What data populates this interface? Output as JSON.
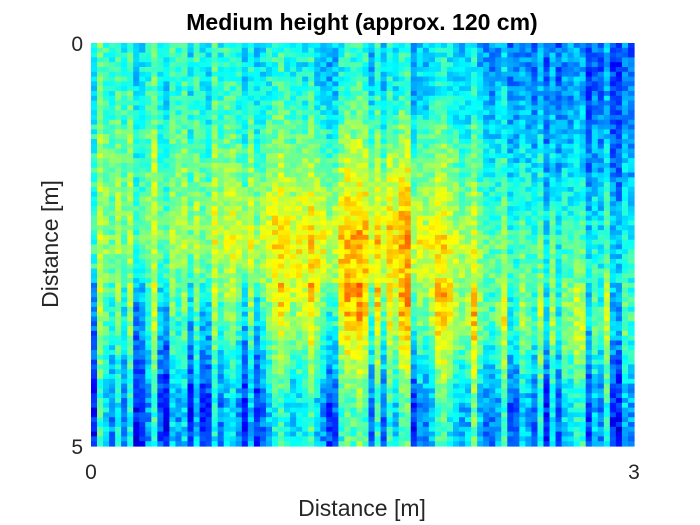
{
  "chart_data": {
    "type": "heatmap",
    "title": "Medium height (approx. 120 cm)",
    "xlabel": "Distance [m]",
    "ylabel": "Distance [m]",
    "xlim": [
      0,
      3
    ],
    "ylim": [
      0,
      5
    ],
    "y_axis_direction": "reversed",
    "x_ticks": [
      {
        "value": 0,
        "label": "0"
      },
      {
        "value": 3,
        "label": "3"
      }
    ],
    "y_ticks": [
      {
        "value": 0,
        "label": "0"
      },
      {
        "value": 5,
        "label": "5"
      }
    ],
    "colormap": "jet",
    "grid": false,
    "legend": "none",
    "texture": "vertical striped scans with fine horizontal banding",
    "intensity_grid_0_to_1": {
      "x_centers_m": [
        0.25,
        0.75,
        1.25,
        1.75,
        2.25,
        2.75
      ],
      "y_centers_m": [
        0.5,
        1.5,
        2.5,
        3.5,
        4.5
      ],
      "values": [
        [
          0.42,
          0.38,
          0.36,
          0.36,
          0.3,
          0.24
        ],
        [
          0.48,
          0.46,
          0.5,
          0.52,
          0.4,
          0.3
        ],
        [
          0.5,
          0.56,
          0.64,
          0.66,
          0.48,
          0.4
        ],
        [
          0.4,
          0.36,
          0.52,
          0.54,
          0.52,
          0.46
        ],
        [
          0.3,
          0.22,
          0.34,
          0.32,
          0.32,
          0.3
        ]
      ]
    }
  }
}
